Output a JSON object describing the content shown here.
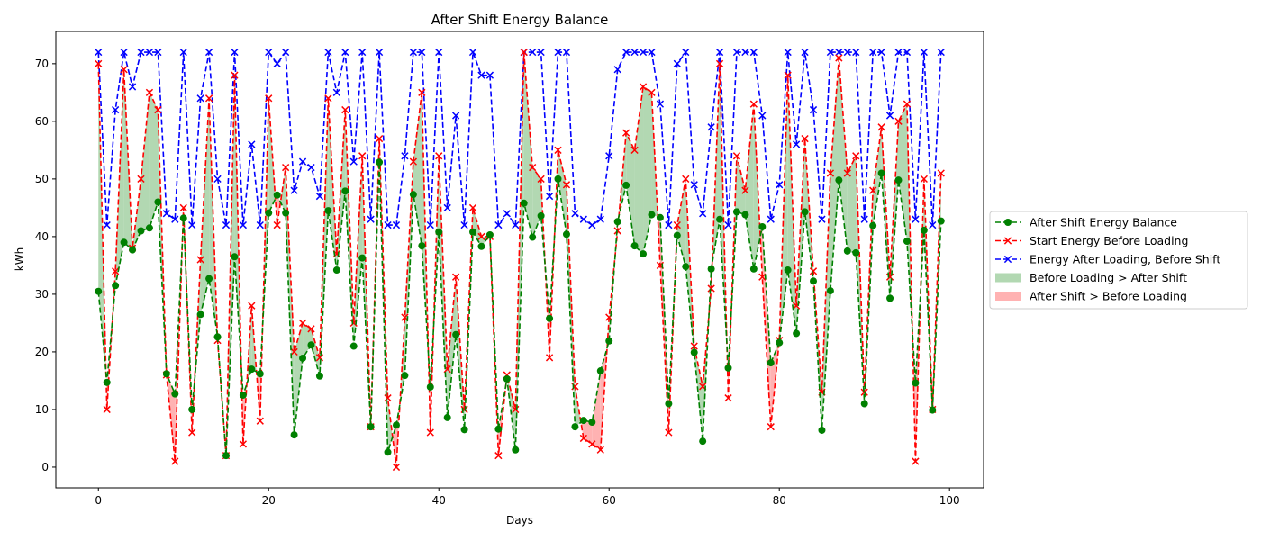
{
  "chart_data": {
    "type": "line",
    "title": "After Shift Energy Balance",
    "xlabel": "Days",
    "ylabel": "kWh",
    "xlim": [
      -5,
      104
    ],
    "ylim": [
      -3.6,
      75.6
    ],
    "xticks": [
      0,
      20,
      40,
      60,
      80,
      100
    ],
    "yticks": [
      0,
      10,
      20,
      30,
      40,
      50,
      60,
      70
    ],
    "grid": false,
    "legend_position": "center-right outside",
    "x": [
      0,
      1,
      2,
      3,
      4,
      5,
      6,
      7,
      8,
      9,
      10,
      11,
      12,
      13,
      14,
      15,
      16,
      17,
      18,
      19,
      20,
      21,
      22,
      23,
      24,
      25,
      26,
      27,
      28,
      29,
      30,
      31,
      32,
      33,
      34,
      35,
      36,
      37,
      38,
      39,
      40,
      41,
      42,
      43,
      44,
      45,
      46,
      47,
      48,
      49,
      50,
      51,
      52,
      53,
      54,
      55,
      56,
      57,
      58,
      59,
      60,
      61,
      62,
      63,
      64,
      65,
      66,
      67,
      68,
      69,
      70,
      71,
      72,
      73,
      74,
      75,
      76,
      77,
      78,
      79,
      80,
      81,
      82,
      83,
      84,
      85,
      86,
      87,
      88,
      89,
      90,
      91,
      92,
      93,
      94,
      95,
      96,
      97,
      98,
      99
    ],
    "series": [
      {
        "name": "After Shift Energy Balance",
        "color": "#008000",
        "marker": "circle",
        "values": [
          30.5,
          14.7,
          31.5,
          39,
          37.7,
          41,
          41.5,
          46,
          16.2,
          12.7,
          43.2,
          10,
          26.5,
          32.7,
          22.6,
          2,
          36.5,
          12.5,
          17,
          16.2,
          44.1,
          47.2,
          44.1,
          5.6,
          18.9,
          21.2,
          15.8,
          44.5,
          34.2,
          47.9,
          21,
          36.3,
          7,
          52.9,
          2.6,
          7.3,
          15.9,
          47.3,
          38.4,
          13.9,
          40.8,
          8.6,
          23,
          6.5,
          40.8,
          38.3,
          40.3,
          6.6,
          15.3,
          3,
          45.8,
          39.9,
          43.6,
          25.8,
          50,
          40.4,
          7,
          8.1,
          7.8,
          16.7,
          21.9,
          42.6,
          48.9,
          38.4,
          37,
          43.8,
          43.3,
          11,
          40.2,
          34.8,
          19.9,
          4.5,
          34.4,
          43,
          17.2,
          44.3,
          43.8,
          34.4,
          41.7,
          18.1,
          21.6,
          34.2,
          23.2,
          44.3,
          32.3,
          6.4,
          30.6,
          49.8,
          37.5,
          37.2,
          11,
          41.9,
          51,
          29.3,
          49.8,
          39.2,
          14.6,
          41.1,
          9.9,
          42.7
        ]
      },
      {
        "name": "Start Energy Before Loading",
        "color": "#ff0000",
        "marker": "x",
        "values": [
          70,
          10,
          34,
          69,
          38,
          50,
          65,
          62,
          16,
          1,
          45,
          6,
          36,
          64,
          22,
          2,
          68,
          4,
          28,
          8,
          64,
          42,
          52,
          20,
          25,
          24,
          19,
          64,
          37,
          62,
          25,
          54,
          7,
          57,
          12,
          0,
          26,
          53,
          65,
          6,
          54,
          17,
          33,
          10,
          45,
          40,
          40,
          2,
          16,
          10,
          72,
          52,
          50,
          19,
          55,
          49,
          14,
          5,
          4,
          3,
          26,
          41,
          58,
          55,
          66,
          65,
          35,
          6,
          42,
          50,
          21,
          14,
          31,
          70,
          12,
          54,
          48,
          63,
          33,
          7,
          22,
          68,
          28,
          57,
          34,
          13,
          51,
          71,
          51,
          54,
          13,
          48,
          59,
          33,
          60,
          63,
          1,
          50,
          10,
          51
        ]
      },
      {
        "name": "Energy After Loading, Before Shift",
        "color": "#0000ff",
        "marker": "x",
        "values": [
          72,
          42,
          62,
          72,
          66,
          72,
          72,
          72,
          44,
          43,
          72,
          42,
          64,
          72,
          50,
          42,
          72,
          42,
          56,
          42,
          72,
          70,
          72,
          48,
          53,
          52,
          47,
          72,
          65,
          72,
          53,
          72,
          43,
          72,
          42,
          42,
          54,
          72,
          72,
          42,
          72,
          45,
          61,
          42,
          72,
          68,
          68,
          42,
          44,
          42,
          72,
          72,
          72,
          47,
          72,
          72,
          44,
          43,
          42,
          43,
          54,
          69,
          72,
          72,
          72,
          72,
          63,
          42,
          70,
          72,
          49,
          44,
          59,
          72,
          42,
          72,
          72,
          72,
          61,
          43,
          49,
          72,
          56,
          72,
          62,
          43,
          72,
          72,
          72,
          72,
          43,
          72,
          72,
          61,
          72,
          72,
          43,
          72,
          42,
          72
        ]
      }
    ],
    "fill_legend": [
      {
        "name": "Before Loading > After Shift",
        "color": "#b2d8b2"
      },
      {
        "name": "After Shift > Before Loading",
        "color": "#ffb2b2"
      }
    ]
  }
}
